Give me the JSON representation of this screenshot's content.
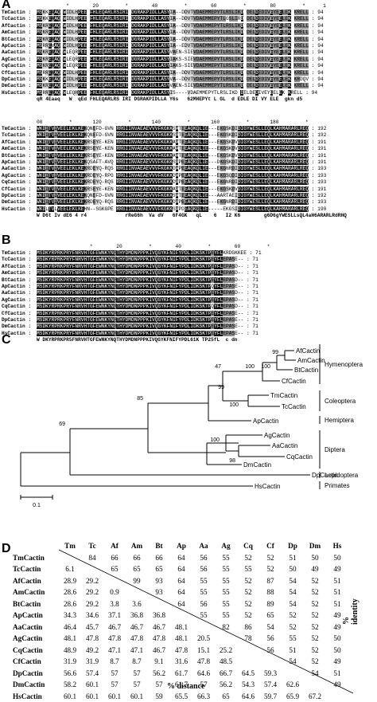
{
  "panels": {
    "a": "A",
    "b": "B",
    "c": "C",
    "d": "D"
  },
  "alignment_a1": {
    "ruler": "          *        20         *        40         *        60         *        80         *      1",
    "rows": [
      {
        "name": "TmCactin :",
        "seq": "MSKKEAAQ WIDLHPEE FHLEQARLRSIRI DGRAKPIDLLASYIA--DDVTVDAEMMEPYTLRSLIKD DELDEDIVEYEELEK KRELL",
        "end": ": 94"
      },
      {
        "name": "TcCactin :",
        "seq": "MSKKEAAQ WIDLHPEE FHLEQARLRSIRI DGRAKPIDLLASYIA--DDVTVDAEMMEPYTLGSLIRD DELDEDIVEYEELEK KRELL",
        "end": ": 94"
      },
      {
        "name": "AfCactin :",
        "seq": "MSKREAAQ WIDLHPEE FHLEQARLRSIRI DGRAKPIDLLASYIA--DDVTVDAEMMEPYTLRSLIKD DELDEDIVEYEELEK KRELL",
        "end": ": 94"
      },
      {
        "name": "AmCactin :",
        "seq": "MSKREAAQ WIDLHPEE FHLEQARLRSIRI DGRAKPIDLLASYIA--DDVTVDAEMMEPYTLRSLIKD DELDEDIVEYEELEK KRELL",
        "end": ": 94"
      },
      {
        "name": "BtCactin :",
        "seq": "MSKREAAQ WIDLHPEE FHLEQARLRSIRI DGRAKPIDLLASYIA--DDVTVDAEMMEPYTLRSLIKD DELDEDIVEYEELEK KRELL",
        "end": ": 94"
      },
      {
        "name": "ApCactin :",
        "seq": "MSRREVAQ WIDLHPEE FHLEQARLRSIRI DGRAKPIDLLASYIA--EDVTVDAEMMEPYTLRSLIKD DELDEDIVEYEELEK KRELL",
        "end": ": 94"
      },
      {
        "name": "AaCactin :",
        "seq": "MSKREAAQ WLEQRPEE FHLEQARLRSIRI DGRAKPIDLLASYVAEN-SIEVDAEMMEPYTLRSLIKD DELDEDIVEYEELEK KRELL",
        "end": ": 94"
      },
      {
        "name": "AgCactin :",
        "seq": "MSKREAAQ WLEQRPEE FHLEQARLRSIRI DGRAKPIDLLASYIAKS-SIEVDAEMMEPYTLRSLIKD DELDEDIVEYEELEK KRELL",
        "end": ": 94"
      },
      {
        "name": "CqCactin :",
        "seq": "MSKREAAQ WLEQRPEE FHLEQARLRSIRI DGRAKPIDLLASYIAKS-SIEVDAEMMEPYTLRSLIKD DELDEDIVEYEELEK KRELL",
        "end": ": 94"
      },
      {
        "name": "CfCactin :",
        "seq": "MSRREAAQ WIDLHPEE FHLEQARLRSIRI DGRAKPIDLLASYIA--DDVTVDAEMMEPYTLRSLIKD DELDEDIVEYEELEK KRELL",
        "end": ": 94"
      },
      {
        "name": "DpCactin :",
        "seq": "MSKKEAAQ WIDLHPEE FHLEQARLRSIRI DGRAKPIDLLASYVA--DDVTVDAEMMEPYTLRSLIKD DELDEDIVEYEELEK KRDQV",
        "end": ": 94"
      },
      {
        "name": "DmCactin :",
        "seq": "MSKREAAQ WIDLHPEE FHLEQARLRSIRI DGRAKPIDLLASYVAEN-SIEVDAEMMEPYTLRSLIKD DELDEDIVEYEELEK KRELL",
        "end": ": 94"
      },
      {
        "name": "HsCactin :",
        "seq": "MSRREAAQ WLEQHPEE FHLEQARLRSIRI DGRAKPIDLLASYIS----VDAEMMEPYTLRSLIKD DELDEDIVEYEELEK KRELL",
        "end": ": 94"
      }
    ],
    "consensus": "qR 4Eaaq   W  qEd FHLEQARLRS IRI DGRAKPIDLLA Y6s   62MHEPYt L GL  d EDLE DI VY ELE  gkn d5"
  },
  "alignment_a2": {
    "ruler": "00         *       120         *       140         *       160         *       180         *",
    "rows": [
      {
        "name": "TmCactin :",
        "seq": "WKDITVIVEELEKLKEKQNEFD-GVN RRGIINVAEAEVVVFKGKKSATEEAQKQLIE---EKGSKDIDIGYWESLLEQLKAHMARARLREQ",
        "end": ": 192"
      },
      {
        "name": "TcCactin :",
        "seq": "WKDITVIVEELEKLKEKQNEFD-GVN RRGIINVAEAEVVVFKGKKSATEEAQKQLIE---EKGSKDIDIGYWESLLEQLKAHMARARLREQ",
        "end": ": 192"
      },
      {
        "name": "AfCactin :",
        "seq": "WKDITVIVEELEKLKEKRSEYE-KEN RRGIINVAEAEVVVFKGKKAATEEAQKQLIE---EKGSKDVDIGYWESLLEQLKAHMARARLREQ",
        "end": ": 191"
      },
      {
        "name": "AmCactin :",
        "seq": "WKDITVIVEELEKLKEKRSEYE-KEN RRGIINVAEAEVVVFKGKKAATEEAQKQLIE---EKGSKDVDIGYWESLLEQLKAHMARARLREQ",
        "end": ": 191"
      },
      {
        "name": "BtCactin :",
        "seq": "WKDITVIVEELEKLKEKRSEYE-KEN RRGIINVAEAEVVVFKGKKAATEEAQKQLIE---EKGSKDVDIGYWESLLEQLKAHMARARLREQ",
        "end": ": 191"
      },
      {
        "name": "ApCactin :",
        "seq": "WKDITVIVEELEKLKEKQSAFT-AVQ RRGIINVAEAEVVVFKGKKSAPEEAQKQLIE---DKGSKDIDIGYWESLLEQLKAHMARARLREQ",
        "end": ": 191"
      },
      {
        "name": "AaCactin :",
        "seq": "WKDITVIVEELEKLKEKRDEYQ-RQS RRGIINVAEAEVVVFKGKKDAPEEAQKQLIE---EKGNRDIDIGYWESLLEQLKAHMARARLREQ",
        "end": ": 193"
      },
      {
        "name": "AgCactin :",
        "seq": "WKDITVIVEELEKLKEKRDEYQ-RPG RRGIINVAEAEVVVFKGKKDAPEEAQKQLIE---EKGSQDIDIGYWESLLEQLKAHMARARLREQ",
        "end": ": 193"
      },
      {
        "name": "CqCactin :",
        "seq": "WKDITVIVEELEKLKEKRDEYQ-RQS RRGIINVAEAEVVVFKGKKDAPEEAQKQLIE---EKGNRDIDIGYWESLLEQLKAHMARARLREQ",
        "end": ": 193"
      },
      {
        "name": "CfCactin :",
        "seq": "WKDITVIVEELEKLKEKRSEYE-KEN RRGIINVAEAEVVVFKGKKAATEEAQKQLIE---EKGSKDVDIGYWESLLEQLKAHMARARLREQ",
        "end": ": 191"
      },
      {
        "name": "DpCactin :",
        "seq": "WKDITVIVEELEKLKEKQNEFD-GVN RRGIINVAEAEVVVFKGKKSATEEAQKQLIE---AARTAEIDIGYWESLLEQLKAHMARARLREQ",
        "end": ": 192"
      },
      {
        "name": "DmCactin :",
        "seq": "WKDITVIVEELEKLKEKRDEYQ-RQS RRGIINVAEAEVVVFKGKKDAPEEAQKQLIE---EKGNRDIDIGYWESLLEQLKAHMARARLREQ",
        "end": ": 193"
      },
      {
        "name": "HsCactin :",
        "seq": "WKDLTVLVEELEKLKEHN--SGKGPE RRGIINVAEAEVVVFKGKKSAPDEAQKQLIE-----EKGSIDIGYWESLLEQLKAHMARARLREQ",
        "end": ": 190"
      }
    ],
    "consensus": "W D6t Iv dE6 4 r4             rReG6h  Va dV   6F4GK   qL    6   I2 K6        g6D6gYWESLLsQL4aH6ARARLRdRHQ"
  },
  "alignment_b": {
    "ruler": "                  *        20         *        40         *        60         *",
    "rows": [
      {
        "name": "TmCactin :",
        "seq": "MSDKYRPRKPRYFNRVHTGFEWNKYNQTHYDMDNPPPKIVQGYKFNIFYPDLIDKSKTPEYFLKRDGKKEE",
        "end": ": 71"
      },
      {
        "name": "TcCactin :",
        "seq": "MSDKYRPRKPRYFNRVHTGFEWNKYNQTHYDMDNPPPKIVQGYKFNIFYPDLIDKSKTPEYFLEPASE--",
        "end": ": 71"
      },
      {
        "name": "AfCactin :",
        "seq": "MSDKYRPRKPRYFNRVHTGFEWNKYNQTHYDMDNPPPKIVQGYKFNIFYPDLIDKSKTPEYFLEPASD--",
        "end": ": 71"
      },
      {
        "name": "AmCactin :",
        "seq": "MSDKYRPRKPRYFNRVHTGFEWNKYNQTHYDMDNPPPKIVQGYKFNIFYPDLIDKSKTPEYFLEPASD--",
        "end": ": 71"
      },
      {
        "name": "BtCactin :",
        "seq": "MSDKYRPRKPRYFNRVHTGFEWNKYNQTHYDMDNPPPKIVQGYKFNIFYPDLIDKSKTPEYFLEPASD--",
        "end": ": 71"
      },
      {
        "name": "ApCactin :",
        "seq": "MSDKYRPRKPRYFNRVHTGFEWNKYNQTHYDMDNPPPKIVQGYKFNIFYPDLIDKSKTPQYFLEPASE--",
        "end": ": 71"
      },
      {
        "name": "AaCactin :",
        "seq": "MSDKYRPRKPRYFNRVHTGFEWNKYNQTHYDMDNPPPKIVQGYKFNIFYPDLIDKSKTPEYFLEPASD--",
        "end": ": 71"
      },
      {
        "name": "AgCactin :",
        "seq": "MSDKYRPRKPRYFNRVHTGFEWNKYNQTHYDMDNPPPKIVQGYKFNIFYPDLIDKSKTPEYFLEPASD--",
        "end": ": 71"
      },
      {
        "name": "CqCactin :",
        "seq": "MSDKYRPRKPRYFNRVHTGFEWNKYNQTHYDMDNPPPKIVQGYKFNIFYPDLIDKSKTPQYFLEPASD--",
        "end": ": 71"
      },
      {
        "name": "CfCactin :",
        "seq": "MSDKYRPRKPRYFNRVHTGFEWNKYNQTHYDMDNPPPKIVQGYKFNIFYPDLIDKSKTPEYFLEPASE--",
        "end": ": 71"
      },
      {
        "name": "DpCactin :",
        "seq": "MSDKYRPRKPRYFNRVHTGFEWNKYNQTHYDMDNPPPKIVQGYKFNIFYPDLIDKSKTPEYFLEPASE--",
        "end": ": 71"
      },
      {
        "name": "DmCactin :",
        "seq": "MSDKYRPRKPRYFNRVHTGFEWNKYNQTHYDMDNPPPKIVQGYKFNIFYPDLIDKSKTPEYFLEPASE--",
        "end": ": 71"
      },
      {
        "name": "HsCactin :",
        "seq": "MSDKYRPRKPRYFNRVHTGFEWNKYNQTHYDMDNPPPKIVQGYKFNIFYPDLIDKSKTPEYFLEPASE--",
        "end": ": 71"
      }
    ],
    "consensus": "W DKYRPRKPR5FNRVHTGFEWNKYNQTHYDMDNPPPKIVQGYKFNIFYPDL61K TP25fL  c dn"
  },
  "tree": {
    "taxa": [
      "AfCactin",
      "AmCactin",
      "BtCactin",
      "CfCactin",
      "TmCactin",
      "TcCactin",
      "ApCactin",
      "AgCactin",
      "AaCactin",
      "CqCactin",
      "DmCactin",
      "DpCactin",
      "HsCactin"
    ],
    "bootstrap": [
      "99",
      "100",
      "100",
      "47",
      "99",
      "100",
      "85",
      "100",
      "98",
      "69"
    ],
    "groups": [
      "Hymenoptera",
      "Coleoptera",
      "Hemiptera",
      "Diptera",
      "Lepidoptera",
      "Primates"
    ],
    "scale_label": "0.1"
  },
  "matrix": {
    "col_headers": [
      "Tm",
      "Tc",
      "Af",
      "Am",
      "Bt",
      "Ap",
      "Aa",
      "Ag",
      "Cq",
      "Cf",
      "Dp",
      "Dm",
      "Hs"
    ],
    "row_headers": [
      "TmCactin",
      "TcCactin",
      "AfCactin",
      "AmCactin",
      "BtCactin",
      "ApCactin",
      "AaCactin",
      "AgCactin",
      "CqCactin",
      "CfCactin",
      "DpCactin",
      "DmCactin",
      "HsCactin"
    ],
    "cells": [
      [
        "",
        "84",
        "66",
        "66",
        "66",
        "64",
        "56",
        "55",
        "52",
        "52",
        "51",
        "50",
        "50"
      ],
      [
        "6.1",
        "",
        "65",
        "65",
        "65",
        "64",
        "56",
        "55",
        "55",
        "52",
        "50",
        "49",
        "49"
      ],
      [
        "28.9",
        "29.2",
        "",
        "99",
        "93",
        "64",
        "55",
        "55",
        "52",
        "87",
        "54",
        "52",
        "51"
      ],
      [
        "28.6",
        "29.2",
        "0.9",
        "",
        "93",
        "64",
        "55",
        "55",
        "52",
        "88",
        "54",
        "52",
        "51"
      ],
      [
        "28.6",
        "29.2",
        "3.8",
        "3.6",
        "",
        "64",
        "56",
        "55",
        "52",
        "89",
        "54",
        "52",
        "51"
      ],
      [
        "34.3",
        "34.6",
        "37.1",
        "36.8",
        "36.8",
        "",
        "55",
        "55",
        "52",
        "65",
        "52",
        "52",
        "49"
      ],
      [
        "46.4",
        "45.7",
        "46.7",
        "46.7",
        "46.7",
        "48.1",
        "",
        "82",
        "86",
        "54",
        "52",
        "52",
        "49"
      ],
      [
        "48.1",
        "47.8",
        "47.8",
        "47.8",
        "47.8",
        "48.1",
        "20.5",
        "",
        "78",
        "56",
        "55",
        "52",
        "50"
      ],
      [
        "48.9",
        "49.2",
        "47.1",
        "47.1",
        "46.7",
        "47.8",
        "15.1",
        "25.2",
        "",
        "56",
        "51",
        "52",
        "50"
      ],
      [
        "31.9",
        "31.9",
        "8.7",
        "8.7",
        "9.1",
        "31.6",
        "47.8",
        "48.5",
        "",
        "",
        "54",
        "52",
        "49"
      ],
      [
        "56.6",
        "57.4",
        "57",
        "57",
        "56.2",
        "61.7",
        "64.6",
        "66.7",
        "64.5",
        "59.3",
        "",
        "54",
        "51"
      ],
      [
        "58.2",
        "60.1",
        "57",
        "57",
        "57",
        "61.7",
        "57",
        "56.2",
        "54.3",
        "57.4",
        "62.6",
        "",
        "49"
      ],
      [
        "60.1",
        "60.1",
        "60.1",
        "60.1",
        "59",
        "65.5",
        "66.3",
        "65",
        "64.6",
        "59.7",
        "65.9",
        "67.2",
        ""
      ]
    ],
    "identity_label": "% identity",
    "distance_label": "% distance"
  }
}
